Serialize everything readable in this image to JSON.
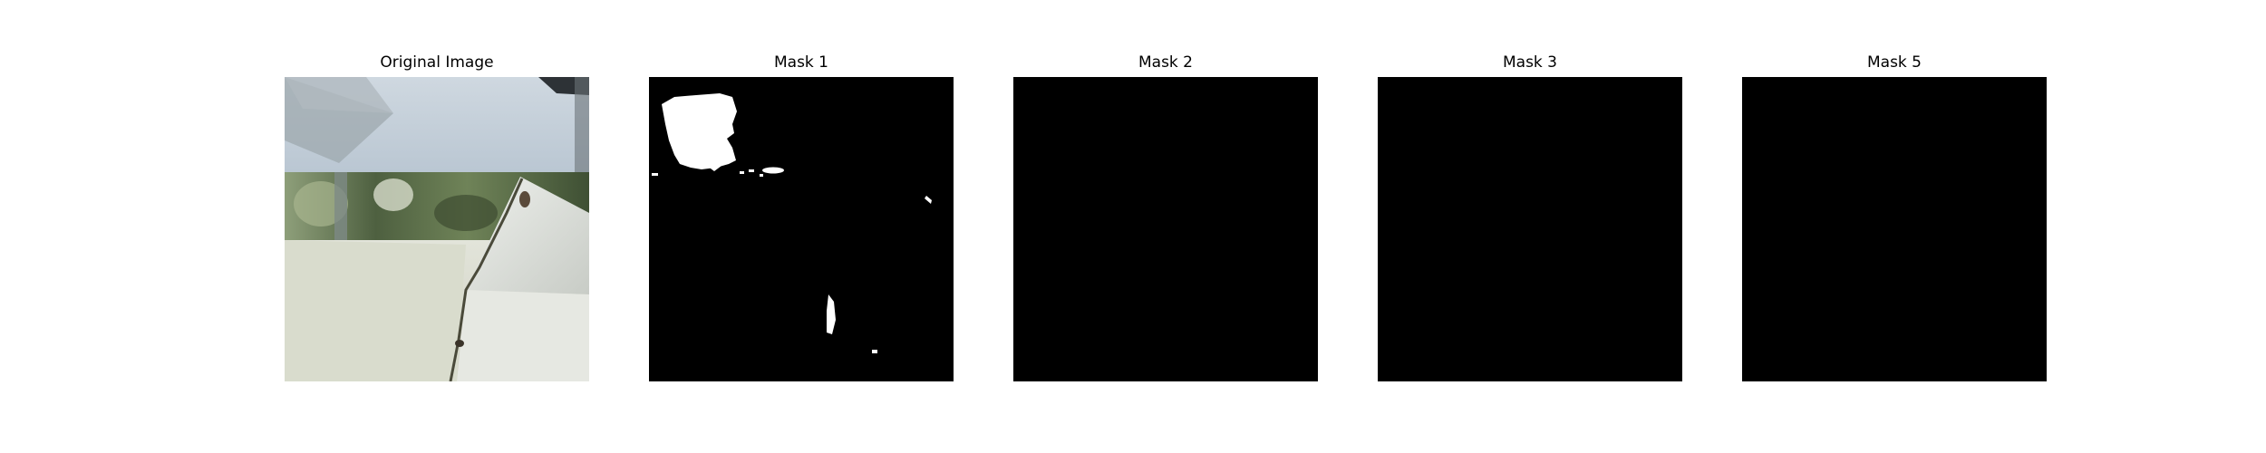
{
  "panels": [
    {
      "title": "Original Image",
      "kind": "photo"
    },
    {
      "title": "Mask 1",
      "kind": "mask"
    },
    {
      "title": "Mask 2",
      "kind": "mask"
    },
    {
      "title": "Mask 3",
      "kind": "mask"
    },
    {
      "title": "Mask 5",
      "kind": "mask"
    }
  ],
  "colors": {
    "background": "#ffffff",
    "mask_fill": "#000000",
    "mask_foreground": "#ffffff"
  }
}
